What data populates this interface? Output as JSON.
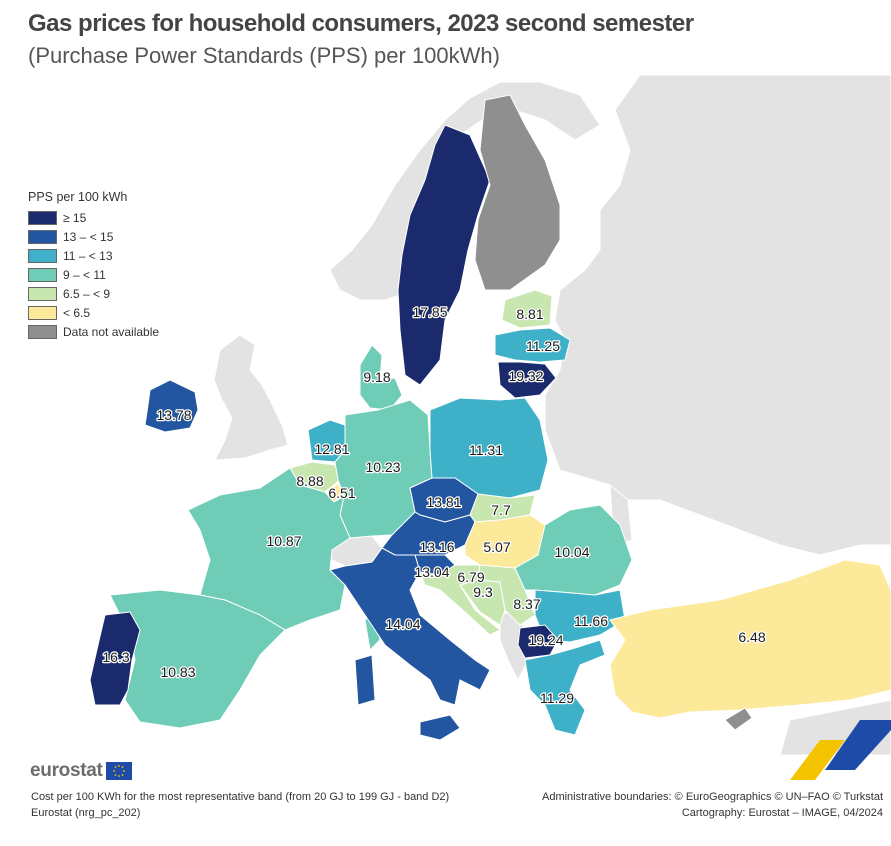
{
  "title": "Gas prices for household consumers, 2023 second semester",
  "subtitle": "(Purchase Power Standards (PPS) per 100kWh)",
  "legend": {
    "title": "PPS per 100 kWh",
    "items": [
      {
        "label": "≥ 15",
        "color": "#1a2a6c"
      },
      {
        "label": "13 – < 15",
        "color": "#2256a0"
      },
      {
        "label": "11 – < 13",
        "color": "#3eb1c8"
      },
      {
        "label": "9 – < 11",
        "color": "#6fcdb7"
      },
      {
        "label": "6.5 – < 9",
        "color": "#c8e6b0"
      },
      {
        "label": "< 6.5",
        "color": "#fde99a"
      },
      {
        "label": "Data not available",
        "color": "#8f8f8f"
      }
    ]
  },
  "map_data": {
    "Sweden": "17.85",
    "Finland": "Data not available",
    "Estonia": "8.81",
    "Latvia": "11.25",
    "Lithuania": "19.32",
    "Denmark": "9.18",
    "Ireland": "13.78",
    "Netherlands": "12.81",
    "Belgium": "8.88",
    "Luxembourg": "6.51",
    "Germany": "10.23",
    "Poland": "11.31",
    "Czechia": "13.81",
    "Slovakia": "7.7",
    "Austria": "13.16",
    "Hungary": "5.07",
    "Slovenia": "13.04",
    "Croatia": "6.79",
    "Bosnia and Herzegovina": "9.3",
    "Serbia": "8.37",
    "Romania": "10.04",
    "Bulgaria": "11.66",
    "North Macedonia": "19.24",
    "Greece": "11.29",
    "Türkiye": "6.48",
    "France": "10.87",
    "Portugal": "16.3",
    "Spain": "10.83",
    "Italy": "14.04"
  },
  "footer": {
    "logo": "eurostat",
    "note": "Cost per 100 KWh for the most representative band (from 20 GJ to 199 GJ - band D2)",
    "source": "Eurostat (nrg_pc_202)",
    "boundaries": "Administrative boundaries: © EuroGeographics © UN–FAO © Turkstat",
    "cartography": "Cartography: Eurostat – IMAGE, 04/2024"
  }
}
